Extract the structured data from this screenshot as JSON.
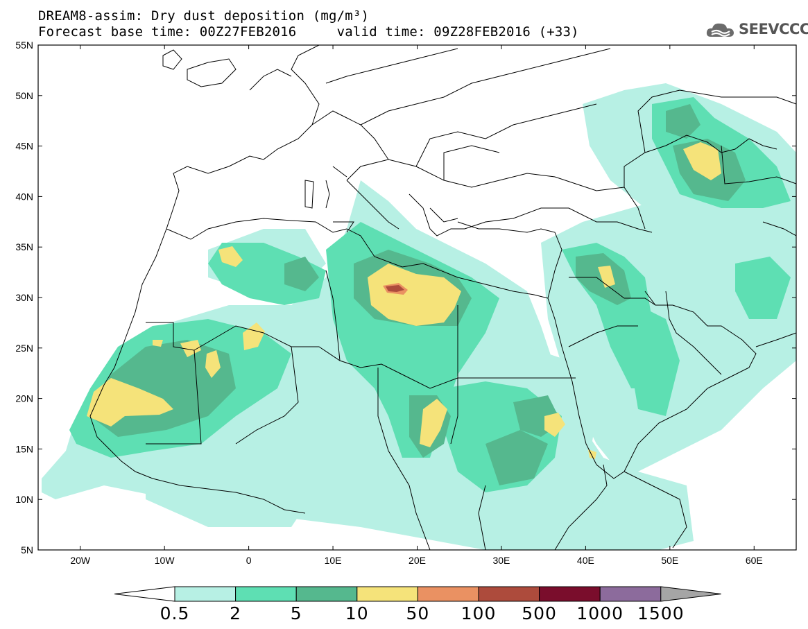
{
  "header": {
    "title_line1": "DREAM8-assim: Dry dust deposition (mg/m³)",
    "title_line2": "Forecast base time: 00Z27FEB2016     valid time: 09Z28FEB2016 (+33)"
  },
  "logo": {
    "text": "SEEVCCC",
    "icon": "cloud-icon"
  },
  "map": {
    "lat_labels": [
      "55N",
      "50N",
      "45N",
      "40N",
      "35N",
      "30N",
      "25N",
      "20N",
      "15N",
      "10N",
      "5N"
    ],
    "lon_labels": [
      "20W",
      "10W",
      "0",
      "10E",
      "20E",
      "30E",
      "40E",
      "50E",
      "60E"
    ],
    "lon_range": [
      -25,
      65
    ],
    "lat_range": [
      5,
      55
    ]
  },
  "legend": {
    "labels": [
      "0.5",
      "2",
      "5",
      "10",
      "50",
      "100",
      "500",
      "1000",
      "1500"
    ],
    "colors": [
      "#ffffff",
      "#b7f0e4",
      "#5edfb3",
      "#55b88e",
      "#f5e37a",
      "#ea9162",
      "#ad4b3c",
      "#7a0d2c",
      "#8c6b9c",
      "#a5a5a5"
    ]
  }
}
